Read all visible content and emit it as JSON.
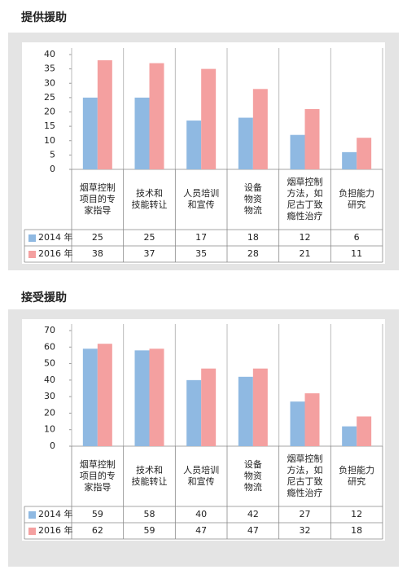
{
  "chart_data": [
    {
      "type": "bar",
      "title": "提供援助",
      "categories": [
        "烟草控制\n项目的专\n家指导",
        "技术和\n技能转让",
        "人员培训\n和宣传",
        "设备\n物资\n物流",
        "烟草控制\n方法，如\n尼古丁致\n瘾性治疗",
        "负担能力\n研究"
      ],
      "series": [
        {
          "name": "2014 年",
          "color": "#8fb9e2",
          "values": [
            25,
            25,
            17,
            18,
            12,
            6
          ]
        },
        {
          "name": "2016 年",
          "color": "#f4a0a0",
          "values": [
            38,
            37,
            35,
            28,
            21,
            11
          ]
        }
      ],
      "ylim": [
        0,
        40
      ],
      "yticks": [
        0,
        5,
        10,
        15,
        20,
        25,
        30,
        35,
        40
      ]
    },
    {
      "type": "bar",
      "title": "接受援助",
      "categories": [
        "烟草控制\n项目的专\n家指导",
        "技术和\n技能转让",
        "人员培训\n和宣传",
        "设备\n物资\n物流",
        "烟草控制\n方法，如\n尼古丁致\n瘾性治疗",
        "负担能力\n研究"
      ],
      "series": [
        {
          "name": "2014 年",
          "color": "#8fb9e2",
          "values": [
            59,
            58,
            40,
            42,
            27,
            12
          ]
        },
        {
          "name": "2016 年",
          "color": "#f4a0a0",
          "values": [
            62,
            59,
            47,
            47,
            32,
            18
          ]
        }
      ],
      "ylim": [
        0,
        70
      ],
      "yticks": [
        0,
        10,
        20,
        30,
        40,
        50,
        60,
        70
      ]
    }
  ]
}
